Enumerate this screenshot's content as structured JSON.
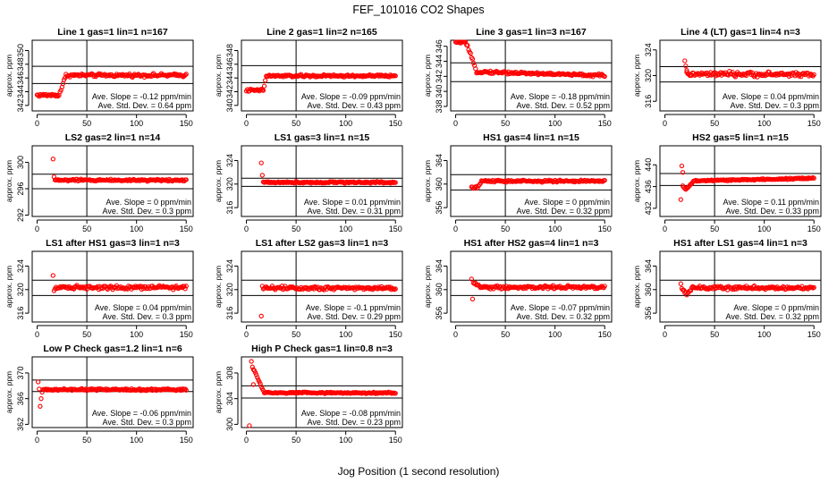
{
  "figure": {
    "title": "FEF_101016  CO2 Shapes",
    "xlabel": "Jog Position (1 second resolution)"
  },
  "chart_data": [
    {
      "type": "scatter",
      "title": "Line 1 gas=1 lin=1 n=167",
      "ylabel": "approx. ppm",
      "xlim": [
        -5,
        157
      ],
      "ylim": [
        341.2,
        351.5
      ],
      "xticks": [
        0,
        50,
        100,
        150
      ],
      "yticks": [
        342,
        344,
        346,
        348,
        350
      ],
      "ref_x": 50,
      "ref_y": [
        345.2,
        347.7
      ],
      "slope_text": "Ave. Slope = -0.12 ppm/min",
      "std_text": "Ave. Std. Dev. = 0.64 ppm",
      "profile": {
        "kind": "rise",
        "baseline": 343.5,
        "level": 346.4,
        "start": 22,
        "end": 29,
        "x0": 0,
        "noise": 0.22
      }
    },
    {
      "type": "scatter",
      "title": "Line 2 gas=1 lin=2 n=165",
      "ylabel": "approx. ppm",
      "xlim": [
        -5,
        157
      ],
      "ylim": [
        339.2,
        349.5
      ],
      "xticks": [
        0,
        50,
        100,
        150
      ],
      "yticks": [
        340,
        342,
        344,
        346,
        348
      ],
      "ref_x": 50,
      "ref_y": [
        343.3,
        345.8
      ],
      "slope_text": "Ave. Slope = -0.09 ppm/min",
      "std_text": "Ave. Std. Dev. = 0.43 ppm",
      "profile": {
        "kind": "rise",
        "baseline": 342.2,
        "level": 344.3,
        "start": 17,
        "end": 20,
        "x0": 0,
        "noise": 0.18
      }
    },
    {
      "type": "scatter",
      "title": "Line 3 gas=1 lin=3 n=167",
      "ylabel": "approx. ppm",
      "xlim": [
        -5,
        157
      ],
      "ylim": [
        337.4,
        346.8
      ],
      "xticks": [
        0,
        50,
        100,
        150
      ],
      "yticks": [
        338,
        340,
        342,
        344,
        346
      ],
      "ref_x": 50,
      "ref_y": [
        341.3,
        343.8
      ],
      "slope_text": "Ave. Slope = -0.18 ppm/min",
      "std_text": "Ave. Std. Dev. = 0.52 ppm",
      "profile": {
        "kind": "fall",
        "baseline": 346.6,
        "level": 342.7,
        "start": 10,
        "end": 21,
        "x0": 0,
        "drift": -0.004,
        "noise": 0.18
      }
    },
    {
      "type": "scatter",
      "title": "Line 4 (LT) gas=1 lin=4 n=3",
      "ylabel": "approx. ppm",
      "xlim": [
        -5,
        157
      ],
      "ylim": [
        314.5,
        325.5
      ],
      "xticks": [
        0,
        50,
        100,
        150
      ],
      "yticks": [
        316,
        320,
        324
      ],
      "ref_x": 50,
      "ref_y": [
        319.0,
        321.4
      ],
      "slope_text": "Ave. Slope = 0.04 ppm/min",
      "std_text": "Ave. Std. Dev. = 0.3 ppm",
      "profile": {
        "kind": "flat",
        "level": 320.2,
        "x0": 22,
        "noise": 0.35,
        "spikes": [
          [
            20,
            322.3
          ],
          [
            21,
            321.5
          ],
          [
            22,
            320.8
          ]
        ]
      }
    },
    {
      "type": "scatter",
      "title": "LS2 gas=2 lin=1 n=14",
      "ylabel": "approx. ppm",
      "xlim": [
        -5,
        157
      ],
      "ylim": [
        291.8,
        302.5
      ],
      "xticks": [
        0,
        50,
        100,
        150
      ],
      "yticks": [
        292,
        296,
        300
      ],
      "ref_x": 50,
      "ref_y": [
        296.0,
        298.2
      ],
      "slope_text": "Ave. Slope = 0 ppm/min",
      "std_text": "Ave. Std. Dev. = 0.3 ppm",
      "profile": {
        "kind": "flat",
        "level": 297.3,
        "x0": 18,
        "noise": 0.15,
        "spikes": [
          [
            16,
            300.5
          ],
          [
            17,
            297.8
          ]
        ]
      }
    },
    {
      "type": "scatter",
      "title": "LS1 gas=3 lin=1 n=15",
      "ylabel": "approx. ppm",
      "xlim": [
        -5,
        157
      ],
      "ylim": [
        314.5,
        326.5
      ],
      "xticks": [
        0,
        50,
        100,
        150
      ],
      "yticks": [
        316,
        320,
        324
      ],
      "ref_x": 50,
      "ref_y": [
        319.6,
        321.0
      ],
      "slope_text": "Ave. Slope = 0.01 ppm/min",
      "std_text": "Ave. Std. Dev. = 0.31 ppm",
      "profile": {
        "kind": "flat",
        "level": 320.3,
        "x0": 17,
        "noise": 0.15,
        "spikes": [
          [
            15,
            323.6
          ],
          [
            16,
            321.5
          ]
        ]
      }
    },
    {
      "type": "scatter",
      "title": "HS1 gas=4 lin=1 n=15",
      "ylabel": "approx. ppm",
      "xlim": [
        -5,
        157
      ],
      "ylim": [
        354.5,
        366.5
      ],
      "xticks": [
        0,
        50,
        100,
        150
      ],
      "yticks": [
        356,
        360,
        364
      ],
      "ref_x": 50,
      "ref_y": [
        359.0,
        361.6
      ],
      "slope_text": "Ave. Slope = 0 ppm/min",
      "std_text": "Ave. Std. Dev. = 0.32 ppm",
      "profile": {
        "kind": "rise",
        "baseline": 359.4,
        "level": 360.5,
        "start": 22,
        "end": 26,
        "x0": 16,
        "noise": 0.18
      }
    },
    {
      "type": "scatter",
      "title": "HS2 gas=5 lin=1 n=15",
      "ylabel": "approx. ppm",
      "xlim": [
        -5,
        157
      ],
      "ylim": [
        430.5,
        443.5
      ],
      "xticks": [
        0,
        50,
        100,
        150
      ],
      "yticks": [
        432,
        436,
        440
      ],
      "ref_x": 50,
      "ref_y": [
        436.2,
        438.4
      ],
      "slope_text": "Ave. Slope = 0.11 ppm/min",
      "std_text": "Ave. Std. Dev. = 0.33 ppm",
      "profile": {
        "kind": "dip",
        "level": 437.0,
        "x0": 18,
        "dip_at": 21,
        "dip_depth": 1.6,
        "dip_width": 8,
        "drift": 0.004,
        "noise": 0.14,
        "spikes": [
          [
            16,
            433.6
          ],
          [
            17,
            439.8
          ],
          [
            18,
            438.6
          ]
        ]
      }
    },
    {
      "type": "scatter",
      "title": "LS1 after HS1 gas=3 lin=1 n=3",
      "ylabel": "approx. ppm",
      "xlim": [
        -5,
        157
      ],
      "ylim": [
        314.5,
        326.5
      ],
      "xticks": [
        0,
        50,
        100,
        150
      ],
      "yticks": [
        316,
        320,
        324
      ],
      "ref_x": 50,
      "ref_y": [
        319.0,
        321.6
      ],
      "slope_text": "Ave. Slope = 0.04 ppm/min",
      "std_text": "Ave. Std. Dev. = 0.3 ppm",
      "profile": {
        "kind": "flat",
        "level": 320.4,
        "x0": 18,
        "noise": 0.32,
        "spikes": [
          [
            16,
            322.4
          ],
          [
            17,
            319.8
          ]
        ]
      }
    },
    {
      "type": "scatter",
      "title": "LS1 after LS2 gas=3 lin=1 n=3",
      "ylabel": "approx. ppm",
      "xlim": [
        -5,
        157
      ],
      "ylim": [
        314.5,
        326.5
      ],
      "xticks": [
        0,
        50,
        100,
        150
      ],
      "yticks": [
        316,
        320,
        324
      ],
      "ref_x": 50,
      "ref_y": [
        319.0,
        321.6
      ],
      "slope_text": "Ave. Slope = -0.1 ppm/min",
      "std_text": "Ave. Std. Dev. = 0.29 ppm",
      "profile": {
        "kind": "flat",
        "level": 320.3,
        "x0": 17,
        "noise": 0.32,
        "spikes": [
          [
            15,
            315.5
          ],
          [
            16,
            320.6
          ]
        ]
      }
    },
    {
      "type": "scatter",
      "title": "HS1 after HS2 gas=4 lin=1 n=3",
      "ylabel": "approx. ppm",
      "xlim": [
        -5,
        157
      ],
      "ylim": [
        354.5,
        366.5
      ],
      "xticks": [
        0,
        50,
        100,
        150
      ],
      "yticks": [
        356,
        360,
        364
      ],
      "ref_x": 50,
      "ref_y": [
        359.0,
        361.6
      ],
      "slope_text": "Ave. Slope = -0.07 ppm/min",
      "std_text": "Ave. Std. Dev. = 0.32 ppm",
      "profile": {
        "kind": "fall",
        "baseline": 361.2,
        "level": 360.4,
        "start": 18,
        "end": 26,
        "x0": 18,
        "noise": 0.28,
        "spikes": [
          [
            16,
            361.8
          ],
          [
            17,
            358.4
          ]
        ]
      }
    },
    {
      "type": "scatter",
      "title": "HS1 after LS1 gas=4 lin=1 n=3",
      "ylabel": "approx. ppm",
      "xlim": [
        -5,
        157
      ],
      "ylim": [
        354.5,
        366.5
      ],
      "xticks": [
        0,
        50,
        100,
        150
      ],
      "yticks": [
        356,
        360,
        364
      ],
      "ref_x": 50,
      "ref_y": [
        359.0,
        361.6
      ],
      "slope_text": "Ave. Slope = 0 ppm/min",
      "std_text": "Ave. Std. Dev. = 0.32 ppm",
      "profile": {
        "kind": "dip",
        "level": 360.3,
        "x0": 18,
        "dip_at": 22,
        "dip_depth": 1.0,
        "dip_width": 6,
        "noise": 0.28,
        "spikes": [
          [
            16,
            361.0
          ],
          [
            17,
            360.2
          ]
        ]
      }
    },
    {
      "type": "scatter",
      "title": "Low P Check gas=1.2 lin=1 n=6",
      "ylabel": "approx. ppm",
      "xlim": [
        -5,
        157
      ],
      "ylim": [
        361.5,
        372.5
      ],
      "xticks": [
        0,
        50,
        100,
        150
      ],
      "yticks": [
        362,
        366,
        370
      ],
      "ref_x": 50,
      "ref_y": [
        367.1,
        368.9
      ],
      "slope_text": "Ave. Slope = -0.06 ppm/min",
      "std_text": "Ave. Std. Dev. = 0.3 ppm",
      "profile": {
        "kind": "flat",
        "level": 367.4,
        "x0": 6,
        "noise": 0.15,
        "spikes": [
          [
            1,
            368.6
          ],
          [
            2,
            367.5
          ],
          [
            3,
            364.8
          ],
          [
            4,
            366.0
          ],
          [
            5,
            367.0
          ]
        ]
      }
    },
    {
      "type": "scatter",
      "title": "High P Check gas=1 lin=0.8 n=3",
      "ylabel": "approx. ppm",
      "xlim": [
        -5,
        157
      ],
      "ylim": [
        299.5,
        310.5
      ],
      "xticks": [
        0,
        50,
        100,
        150
      ],
      "yticks": [
        300,
        304,
        308
      ],
      "ref_x": 50,
      "ref_y": [
        304.1,
        306.0
      ],
      "slope_text": "Ave. Slope = -0.08 ppm/min",
      "std_text": "Ave. Std. Dev. = 0.23 ppm",
      "profile": {
        "kind": "fall",
        "baseline": 309.0,
        "level": 304.9,
        "start": 6,
        "end": 18,
        "x0": 6,
        "noise": 0.12,
        "spikes": [
          [
            3,
            299.8
          ],
          [
            5,
            309.8
          ],
          [
            7,
            306.2
          ]
        ]
      }
    }
  ]
}
